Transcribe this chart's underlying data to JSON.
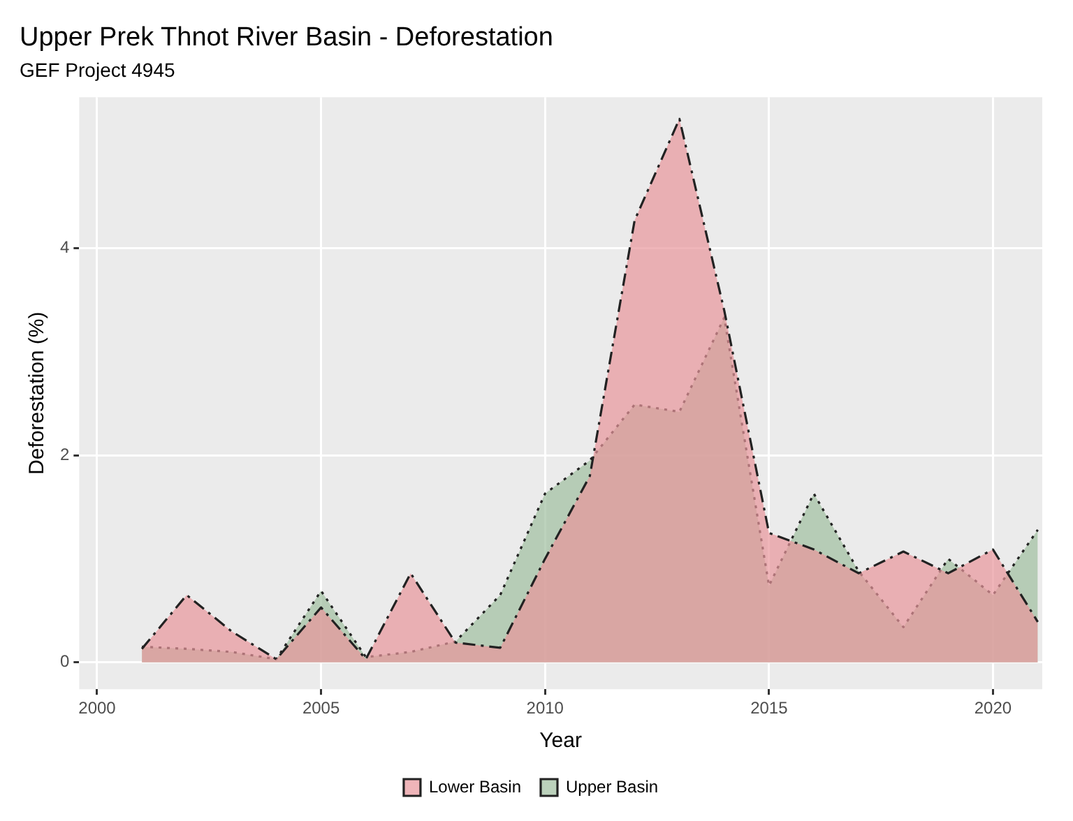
{
  "chart_data": {
    "type": "area",
    "title": "Upper Prek Thnot River Basin - Deforestation",
    "subtitle": "GEF Project 4945",
    "xlabel": "Year",
    "ylabel": "Deforestation (%)",
    "x": [
      2001,
      2002,
      2003,
      2004,
      2005,
      2006,
      2007,
      2008,
      2009,
      2010,
      2011,
      2012,
      2013,
      2014,
      2015,
      2016,
      2017,
      2018,
      2019,
      2020,
      2021
    ],
    "series": [
      {
        "name": "Lower Basin",
        "color": "#e8969b",
        "line_style": "dashed",
        "values": [
          0.13,
          0.65,
          0.3,
          0.03,
          0.53,
          0.03,
          0.86,
          0.19,
          0.14,
          1.0,
          1.8,
          4.27,
          5.25,
          3.4,
          1.25,
          1.09,
          0.86,
          1.07,
          0.86,
          1.09,
          0.39
        ]
      },
      {
        "name": "Upper Basin",
        "color": "#9fbf9f",
        "line_style": "dotted",
        "values": [
          0.15,
          0.13,
          0.1,
          0.03,
          0.69,
          0.05,
          0.1,
          0.2,
          0.65,
          1.63,
          1.95,
          2.49,
          2.42,
          3.33,
          0.74,
          1.63,
          0.88,
          0.34,
          1.0,
          0.65,
          1.28
        ]
      }
    ],
    "xlim": [
      1999.6,
      2021.1
    ],
    "xticks": [
      2000,
      2005,
      2010,
      2015,
      2020
    ],
    "ylim": [
      -0.26,
      5.46
    ],
    "yticks": [
      0,
      2,
      4
    ],
    "grid": true,
    "legend": "bottom",
    "marker": "none"
  }
}
